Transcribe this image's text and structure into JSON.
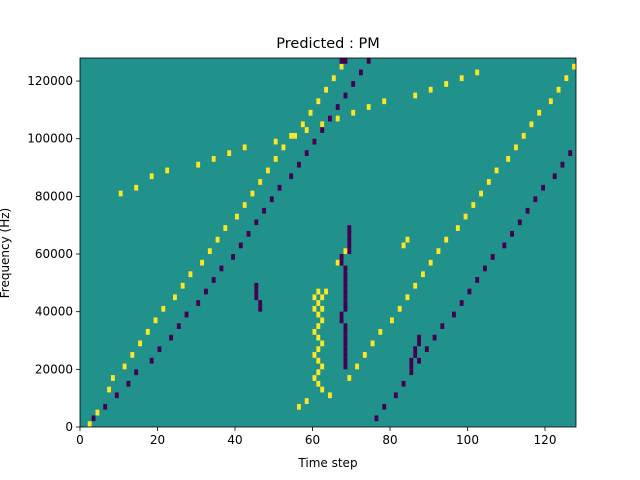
{
  "chart_data": {
    "type": "heatmap",
    "title": "Predicted : PM",
    "xlabel": "Time step",
    "ylabel": "Frequency (Hz)",
    "xlim": [
      0,
      128
    ],
    "ylim": [
      0,
      128000
    ],
    "xticks": [
      0,
      20,
      40,
      60,
      80,
      100,
      120
    ],
    "yticks": [
      0,
      20000,
      40000,
      60000,
      80000,
      100000,
      120000
    ],
    "colors": {
      "background": "#21918c",
      "high": "#fde725",
      "low": "#440154"
    },
    "cell_size": {
      "time_steps": 1,
      "frequency_hz": 2000
    },
    "high_cells": [
      [
        2,
        0
      ],
      [
        4,
        2
      ],
      [
        7,
        6
      ],
      [
        8,
        8
      ],
      [
        11,
        10
      ],
      [
        13,
        12
      ],
      [
        15,
        14
      ],
      [
        17,
        16
      ],
      [
        19,
        18
      ],
      [
        21,
        20
      ],
      [
        24,
        22
      ],
      [
        26,
        24
      ],
      [
        28,
        26
      ],
      [
        31,
        28
      ],
      [
        33,
        30
      ],
      [
        35,
        32
      ],
      [
        37,
        34
      ],
      [
        40,
        36
      ],
      [
        42,
        38
      ],
      [
        44,
        40
      ],
      [
        46,
        42
      ],
      [
        48,
        44
      ],
      [
        50,
        46
      ],
      [
        52,
        48
      ],
      [
        55,
        50
      ],
      [
        57,
        52
      ],
      [
        59,
        54
      ],
      [
        61,
        56
      ],
      [
        63,
        58
      ],
      [
        65,
        60
      ],
      [
        67,
        62
      ],
      [
        69,
        8
      ],
      [
        71,
        10
      ],
      [
        73,
        12
      ],
      [
        75,
        14
      ],
      [
        77,
        16
      ],
      [
        80,
        18
      ],
      [
        82,
        20
      ],
      [
        84,
        22
      ],
      [
        86,
        24
      ],
      [
        88,
        26
      ],
      [
        90,
        28
      ],
      [
        92,
        30
      ],
      [
        94,
        32
      ],
      [
        97,
        34
      ],
      [
        99,
        36
      ],
      [
        101,
        38
      ],
      [
        103,
        40
      ],
      [
        105,
        42
      ],
      [
        107,
        44
      ],
      [
        110,
        46
      ],
      [
        112,
        48
      ],
      [
        114,
        50
      ],
      [
        116,
        52
      ],
      [
        118,
        54
      ],
      [
        121,
        56
      ],
      [
        123,
        58
      ],
      [
        125,
        60
      ],
      [
        127,
        62
      ],
      [
        60,
        20
      ],
      [
        61,
        21
      ],
      [
        62,
        22
      ],
      [
        63,
        23
      ],
      [
        60,
        22
      ],
      [
        61,
        23
      ],
      [
        62,
        20
      ],
      [
        61,
        19
      ],
      [
        62,
        18
      ],
      [
        61,
        17
      ],
      [
        60,
        16
      ],
      [
        61,
        15
      ],
      [
        62,
        14
      ],
      [
        61,
        13
      ],
      [
        60,
        12
      ],
      [
        61,
        11
      ],
      [
        62,
        10
      ],
      [
        61,
        9
      ],
      [
        60,
        8
      ],
      [
        61,
        7
      ],
      [
        62,
        6
      ],
      [
        56,
        3
      ],
      [
        58,
        4
      ],
      [
        64,
        5
      ],
      [
        66,
        28
      ],
      [
        68,
        30
      ],
      [
        83,
        31
      ],
      [
        84,
        32
      ],
      [
        10,
        40
      ],
      [
        14,
        41
      ],
      [
        18,
        43
      ],
      [
        22,
        44
      ],
      [
        30,
        45
      ],
      [
        34,
        46
      ],
      [
        38,
        47
      ],
      [
        42,
        48
      ],
      [
        50,
        49
      ],
      [
        54,
        50
      ],
      [
        58,
        51
      ],
      [
        62,
        52
      ],
      [
        66,
        53
      ],
      [
        70,
        54
      ],
      [
        74,
        55
      ],
      [
        78,
        56
      ],
      [
        86,
        57
      ],
      [
        90,
        58
      ],
      [
        94,
        59
      ],
      [
        98,
        60
      ],
      [
        102,
        61
      ]
    ],
    "low_cells": [
      [
        3,
        1
      ],
      [
        6,
        3
      ],
      [
        9,
        5
      ],
      [
        12,
        7
      ],
      [
        14,
        9
      ],
      [
        18,
        11
      ],
      [
        20,
        13
      ],
      [
        23,
        15
      ],
      [
        25,
        17
      ],
      [
        27,
        19
      ],
      [
        30,
        21
      ],
      [
        32,
        23
      ],
      [
        34,
        25
      ],
      [
        36,
        27
      ],
      [
        39,
        29
      ],
      [
        41,
        31
      ],
      [
        43,
        33
      ],
      [
        45,
        35
      ],
      [
        47,
        37
      ],
      [
        49,
        39
      ],
      [
        51,
        41
      ],
      [
        54,
        43
      ],
      [
        56,
        45
      ],
      [
        58,
        47
      ],
      [
        60,
        49
      ],
      [
        62,
        51
      ],
      [
        64,
        53
      ],
      [
        66,
        55
      ],
      [
        68,
        57
      ],
      [
        70,
        59
      ],
      [
        72,
        61
      ],
      [
        74,
        63
      ],
      [
        76,
        1
      ],
      [
        78,
        3
      ],
      [
        81,
        5
      ],
      [
        83,
        7
      ],
      [
        85,
        9
      ],
      [
        87,
        11
      ],
      [
        89,
        13
      ],
      [
        91,
        15
      ],
      [
        93,
        17
      ],
      [
        96,
        19
      ],
      [
        98,
        21
      ],
      [
        100,
        23
      ],
      [
        102,
        25
      ],
      [
        104,
        27
      ],
      [
        106,
        29
      ],
      [
        109,
        31
      ],
      [
        111,
        33
      ],
      [
        113,
        35
      ],
      [
        115,
        37
      ],
      [
        117,
        39
      ],
      [
        119,
        41
      ],
      [
        122,
        43
      ],
      [
        124,
        45
      ],
      [
        126,
        47
      ],
      [
        68,
        10
      ],
      [
        68,
        11
      ],
      [
        68,
        12
      ],
      [
        68,
        13
      ],
      [
        68,
        14
      ],
      [
        68,
        15
      ],
      [
        68,
        16
      ],
      [
        68,
        17
      ],
      [
        67,
        18
      ],
      [
        67,
        19
      ],
      [
        68,
        20
      ],
      [
        68,
        21
      ],
      [
        68,
        22
      ],
      [
        68,
        23
      ],
      [
        68,
        24
      ],
      [
        68,
        25
      ],
      [
        68,
        26
      ],
      [
        68,
        27
      ],
      [
        67,
        28
      ],
      [
        67,
        29
      ],
      [
        69,
        30
      ],
      [
        69,
        31
      ],
      [
        69,
        32
      ],
      [
        69,
        33
      ],
      [
        69,
        34
      ],
      [
        67,
        63
      ],
      [
        68,
        63
      ],
      [
        46,
        20
      ],
      [
        46,
        21
      ],
      [
        45,
        22
      ],
      [
        45,
        23
      ],
      [
        45,
        24
      ],
      [
        85,
        10
      ],
      [
        85,
        11
      ],
      [
        86,
        12
      ],
      [
        86,
        13
      ],
      [
        87,
        14
      ],
      [
        87,
        15
      ]
    ]
  }
}
